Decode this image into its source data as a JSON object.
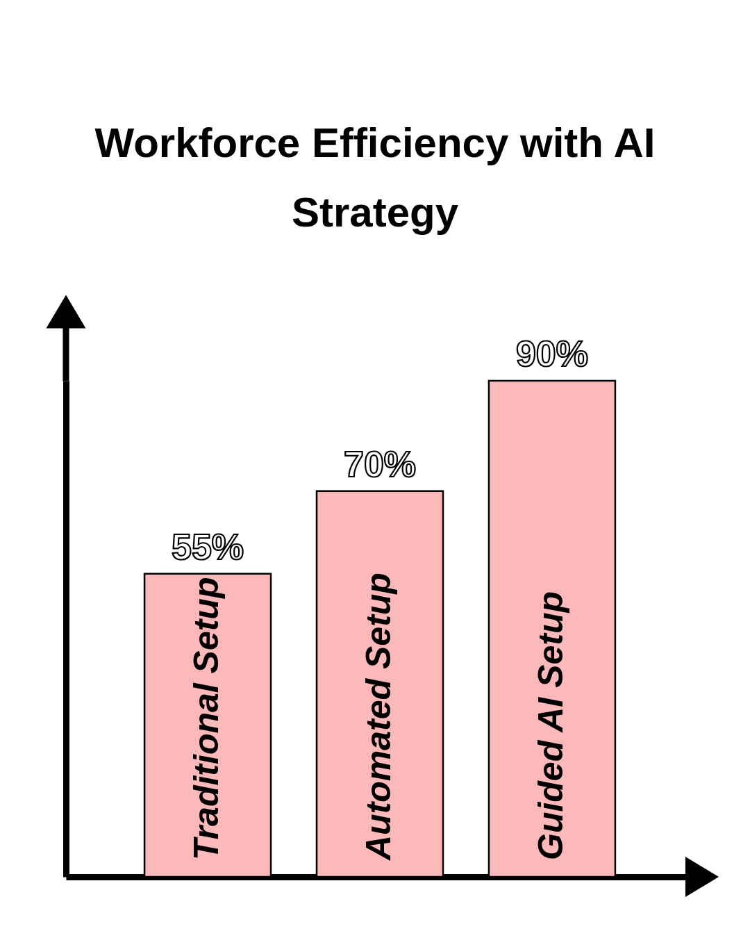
{
  "chart_data": {
    "type": "bar",
    "title": "Workforce Efficiency with AI Strategy",
    "categories": [
      "Traditional Setup",
      "Automated Setup",
      "Guided AI Setup"
    ],
    "values": [
      55,
      70,
      90
    ],
    "color": "#fcb9ba",
    "value_labels": [
      "55%",
      "70%",
      "90%"
    ],
    "tick_labels": false
  }
}
